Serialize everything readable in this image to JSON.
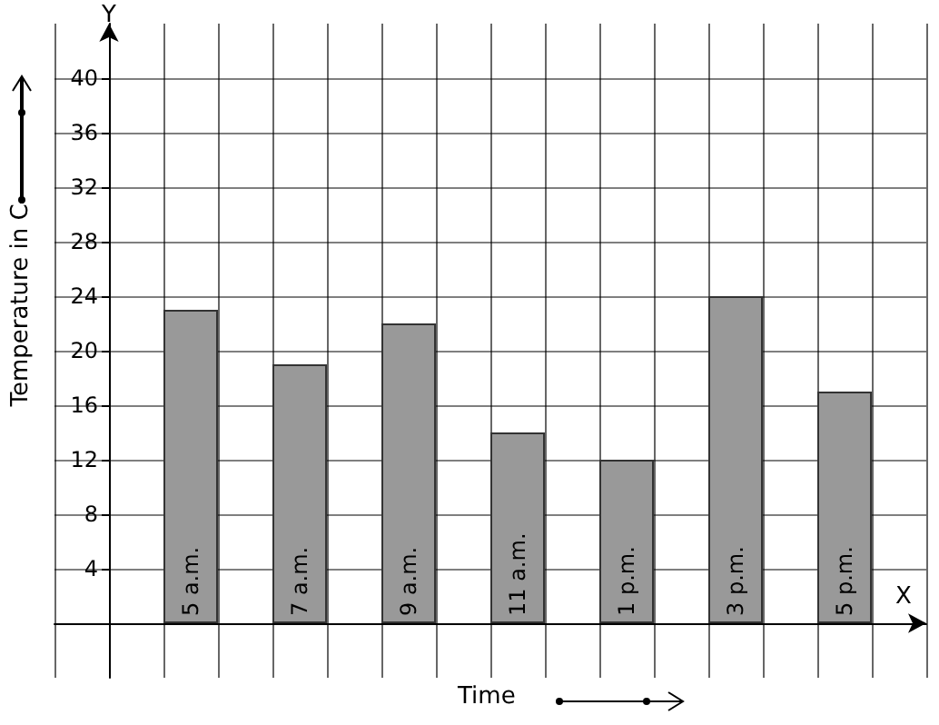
{
  "chart_data": {
    "type": "bar",
    "xlabel": "Time",
    "ylabel": "Temperature in C",
    "categories": [
      "5 a.m.",
      "7 a.m.",
      "9 a.m.",
      "11 a.m.",
      "1 p.m.",
      "3 p.m.",
      "5 p.m."
    ],
    "values": [
      23,
      19,
      22,
      14,
      12,
      24,
      17
    ],
    "color": "#999999",
    "ylim": [
      -4,
      44
    ],
    "yticks": [
      4,
      8,
      12,
      16,
      20,
      24,
      28,
      32,
      36,
      40
    ],
    "grid": true,
    "annotations": [
      "Y",
      "X"
    ]
  }
}
